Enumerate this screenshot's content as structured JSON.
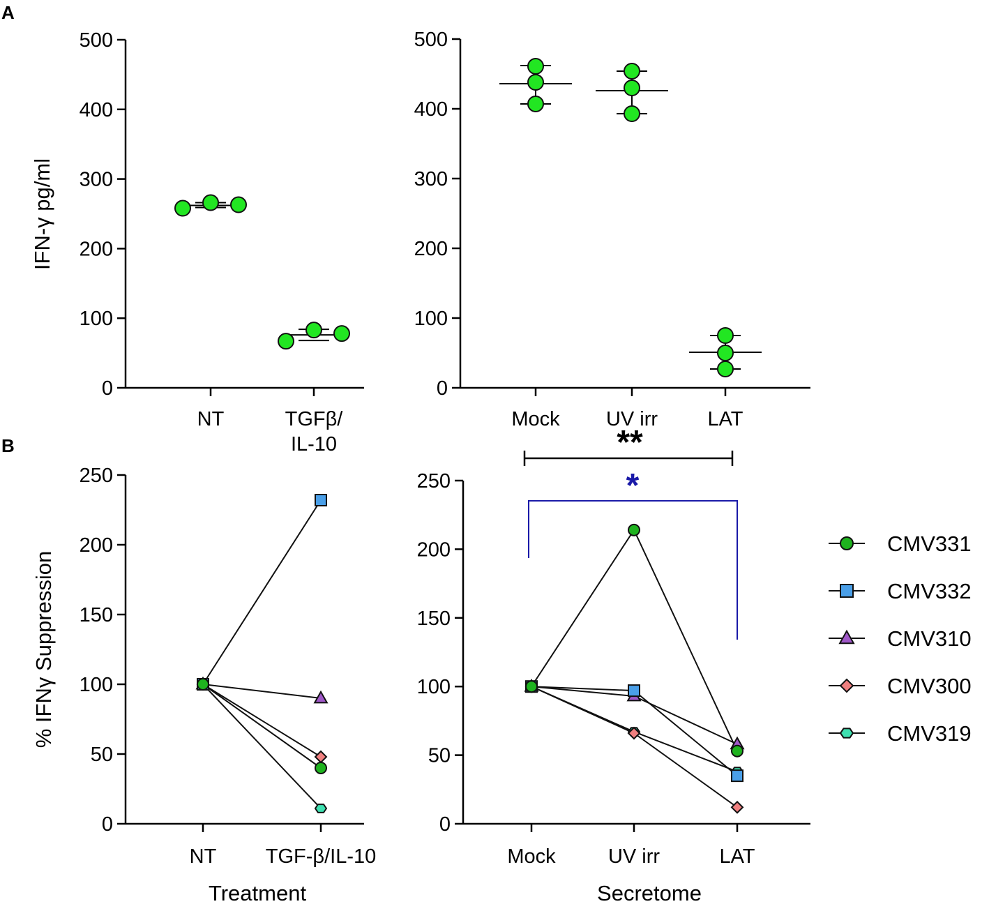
{
  "panel_labels": {
    "a": "A",
    "b": "B"
  },
  "legend": {
    "items": [
      {
        "label": "CMV331",
        "marker": "circle",
        "color": "#1fb31f"
      },
      {
        "label": "CMV332",
        "marker": "square",
        "color": "#4a9fe8"
      },
      {
        "label": "CMV310",
        "marker": "triangle",
        "color": "#a058c8"
      },
      {
        "label": "CMV300",
        "marker": "diamond",
        "color": "#f08080"
      },
      {
        "label": "CMV319",
        "marker": "hexagon",
        "color": "#3ee0b0"
      }
    ]
  },
  "significance": {
    "black_label": "**",
    "black_color": "#000000",
    "blue_label": "*",
    "blue_color": "#1a1aa8"
  },
  "chart_data": [
    {
      "id": "A-left",
      "type": "scatter",
      "ylabel": "IFN-γ pg/ml",
      "ylim": [
        0,
        500
      ],
      "yticks": [
        "0",
        "100",
        "200",
        "300",
        "400",
        "500"
      ],
      "categories": [
        "NT",
        "TGFβ/\nIL-10"
      ],
      "marker_color": "#22e622",
      "groups": [
        {
          "category": "NT",
          "points": [
            258,
            266,
            263
          ],
          "mean": 262,
          "sd_low": 259,
          "sd_high": 266
        },
        {
          "category": "TGFβ/IL-10",
          "points": [
            67,
            83,
            78
          ],
          "mean": 76,
          "sd_low": 68,
          "sd_high": 84
        }
      ]
    },
    {
      "id": "A-right",
      "type": "scatter",
      "ylabel": "",
      "ylim": [
        0,
        500
      ],
      "yticks": [
        "0",
        "100",
        "200",
        "300",
        "400",
        "500"
      ],
      "categories": [
        "Mock",
        "UV irr",
        "LAT"
      ],
      "marker_color": "#22e622",
      "groups": [
        {
          "category": "Mock",
          "points": [
            461,
            438,
            407
          ],
          "mean": 436,
          "sd_low": 407,
          "sd_high": 462
        },
        {
          "category": "UV irr",
          "points": [
            454,
            430,
            393
          ],
          "mean": 426,
          "sd_low": 393,
          "sd_high": 454
        },
        {
          "category": "LAT",
          "points": [
            75,
            50,
            27
          ],
          "mean": 51,
          "sd_low": 27,
          "sd_high": 75
        }
      ]
    },
    {
      "id": "B-left",
      "type": "line",
      "ylabel": "% IFNγ Suppression",
      "xlabel": "Treatment",
      "ylim": [
        0,
        250
      ],
      "yticks": [
        "0",
        "50",
        "100",
        "150",
        "200",
        "250"
      ],
      "categories": [
        "NT",
        "TGF-β/IL-10"
      ],
      "series": [
        {
          "name": "CMV331",
          "values": [
            100,
            40
          ]
        },
        {
          "name": "CMV332",
          "values": [
            100,
            232
          ]
        },
        {
          "name": "CMV310",
          "values": [
            100,
            90
          ]
        },
        {
          "name": "CMV300",
          "values": [
            100,
            48
          ]
        },
        {
          "name": "CMV319",
          "values": [
            100,
            11
          ]
        }
      ]
    },
    {
      "id": "B-right",
      "type": "line",
      "ylabel": "",
      "xlabel": "Secretome",
      "ylim": [
        0,
        250
      ],
      "yticks": [
        "0",
        "50",
        "100",
        "150",
        "200",
        "250"
      ],
      "categories": [
        "Mock",
        "UV irr",
        "LAT"
      ],
      "series": [
        {
          "name": "CMV331",
          "values": [
            100,
            214,
            53
          ]
        },
        {
          "name": "CMV332",
          "values": [
            100,
            97,
            35
          ]
        },
        {
          "name": "CMV310",
          "values": [
            100,
            93,
            58
          ]
        },
        {
          "name": "CMV300",
          "values": [
            100,
            66,
            12
          ]
        },
        {
          "name": "CMV319",
          "values": [
            100,
            67,
            38
          ]
        }
      ]
    }
  ]
}
